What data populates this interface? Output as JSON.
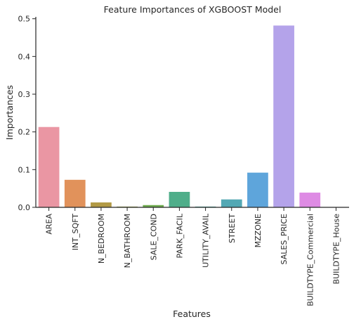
{
  "chart_data": {
    "type": "bar",
    "title": "Feature Importances of XGBOOST Model",
    "xlabel": "Features",
    "ylabel": "Importances",
    "ylim": [
      0,
      0.505
    ],
    "yticks": [
      "0.0",
      "0.1",
      "0.2",
      "0.3",
      "0.4",
      "0.5"
    ],
    "ytick_values": [
      0,
      0.1,
      0.2,
      0.3,
      0.4,
      0.5
    ],
    "grid": false,
    "categories": [
      "AREA",
      "INT_SQFT",
      "N_BEDROOM",
      "N_BATHROOM",
      "SALE_COND",
      "PARK_FACIL",
      "UTILITY_AVAIL",
      "STREET",
      "MZZONE",
      "SALES_PRICE",
      "BUILDTYPE_Commercial",
      "BUILDTYPE_House"
    ],
    "values": [
      0.213,
      0.073,
      0.013,
      0.002,
      0.006,
      0.041,
      0.002,
      0.021,
      0.092,
      0.482,
      0.039,
      0.0
    ],
    "colors": [
      "#ea96a3",
      "#e1925b",
      "#b29a45",
      "#9aa44b",
      "#6fac4f",
      "#4fae8a",
      "#50aaa0",
      "#53a8b4",
      "#5ea5db",
      "#b4a3ea",
      "#de8be4",
      "#e892c5"
    ]
  }
}
